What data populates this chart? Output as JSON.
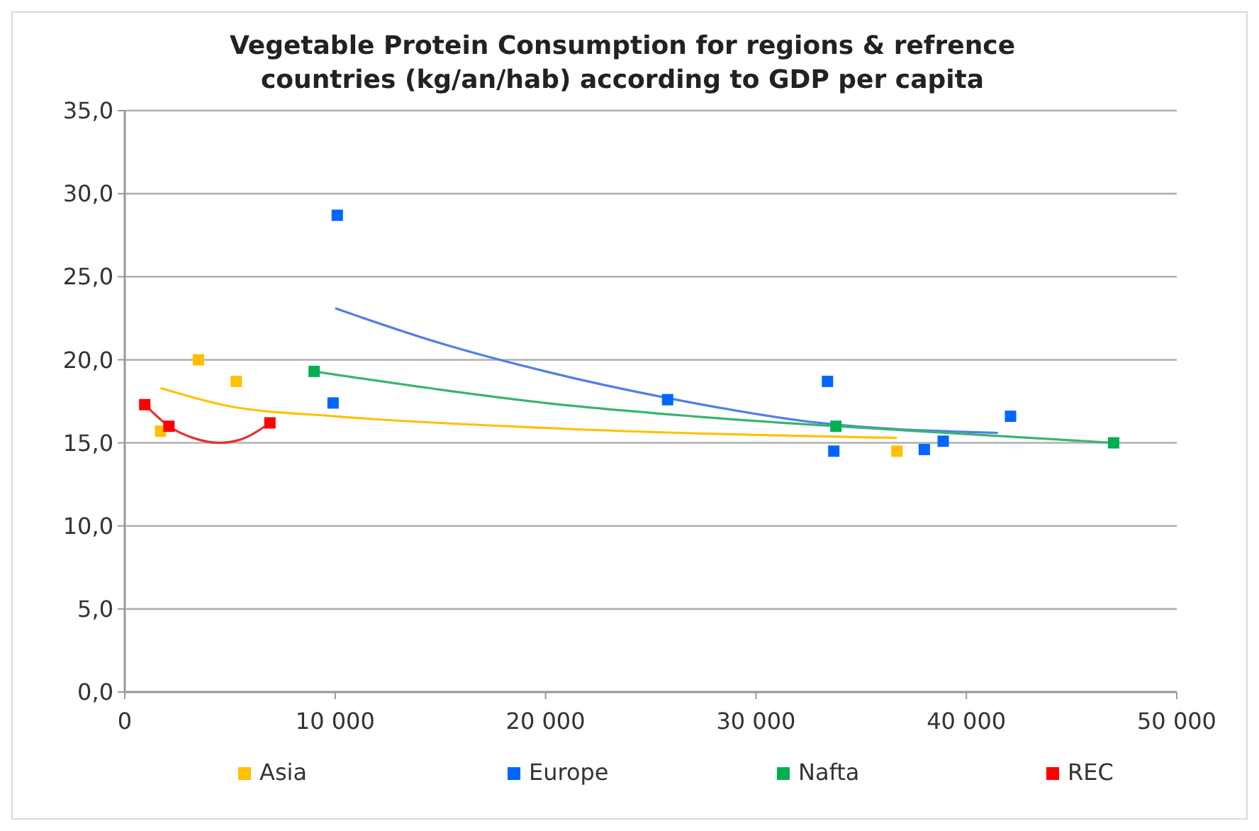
{
  "chart_data": {
    "type": "scatter",
    "title": "Vegetable Protein Consumption for regions & refrence countries (kg/an/hab) according to GDP per capita",
    "xlim": [
      0,
      50000
    ],
    "ylim": [
      0,
      35
    ],
    "xticks": [
      0,
      {
        "value": 10000,
        "label": "10 000"
      },
      {
        "value": 20000,
        "label": "20 000"
      },
      {
        "value": 30000,
        "label": "30 000"
      },
      {
        "value": 40000,
        "label": "40 000"
      },
      {
        "value": 50000,
        "label": "50 000"
      }
    ],
    "yticks": [
      {
        "value": 0,
        "label": "0,0"
      },
      {
        "value": 5,
        "label": "5,0"
      },
      {
        "value": 10,
        "label": "10,0"
      },
      {
        "value": 15,
        "label": "15,0"
      },
      {
        "value": 20,
        "label": "20,0"
      },
      {
        "value": 25,
        "label": "25,0"
      },
      {
        "value": 30,
        "label": "30,0"
      },
      {
        "value": 35,
        "label": "35,0"
      }
    ],
    "grid": "y",
    "legend": "bottom",
    "series": [
      {
        "name": "Asia",
        "marker": "square",
        "color": "#ffc000",
        "x": [
          1700,
          3500,
          5300,
          36700
        ],
        "values": [
          15.7,
          20.0,
          18.7,
          14.5
        ]
      },
      {
        "name": "Europe",
        "marker": "square",
        "color": "#0066ff",
        "x": [
          10100,
          9900,
          25800,
          33400,
          33700,
          38000,
          38900,
          42100
        ],
        "values": [
          28.7,
          17.4,
          17.6,
          18.7,
          14.5,
          14.6,
          15.1,
          16.6
        ]
      },
      {
        "name": "Nafta",
        "marker": "square",
        "color": "#00b050",
        "x": [
          9000,
          33800,
          47000
        ],
        "values": [
          19.3,
          16.0,
          15.0
        ]
      },
      {
        "name": "REC",
        "marker": "square",
        "color": "#ff0000",
        "x": [
          950,
          2100,
          6900
        ],
        "values": [
          17.3,
          16.0,
          16.2
        ]
      },
      {
        "type": "line",
        "marker": "none",
        "color": "#ffc000",
        "x": [
          1700,
          5000,
          10000,
          20000,
          36700
        ],
        "values": [
          18.3,
          17.2,
          16.6,
          15.9,
          15.3
        ]
      },
      {
        "type": "line",
        "marker": "none",
        "color": "#4f7fe8",
        "x": [
          10000,
          15000,
          20000,
          25800,
          33000,
          41500
        ],
        "values": [
          23.1,
          21.0,
          19.3,
          17.7,
          16.2,
          15.6
        ]
      },
      {
        "type": "line",
        "marker": "none",
        "color": "#3cb371",
        "x": [
          9000,
          15000,
          20000,
          27000,
          33800,
          47000
        ],
        "values": [
          19.3,
          18.2,
          17.4,
          16.6,
          16.0,
          15.0
        ]
      },
      {
        "type": "line",
        "marker": "none",
        "color": "#e83030",
        "x": [
          950,
          2100,
          3500,
          4500,
          5500,
          6900
        ],
        "values": [
          17.3,
          16.0,
          15.2,
          15.0,
          15.2,
          16.2
        ]
      }
    ]
  }
}
